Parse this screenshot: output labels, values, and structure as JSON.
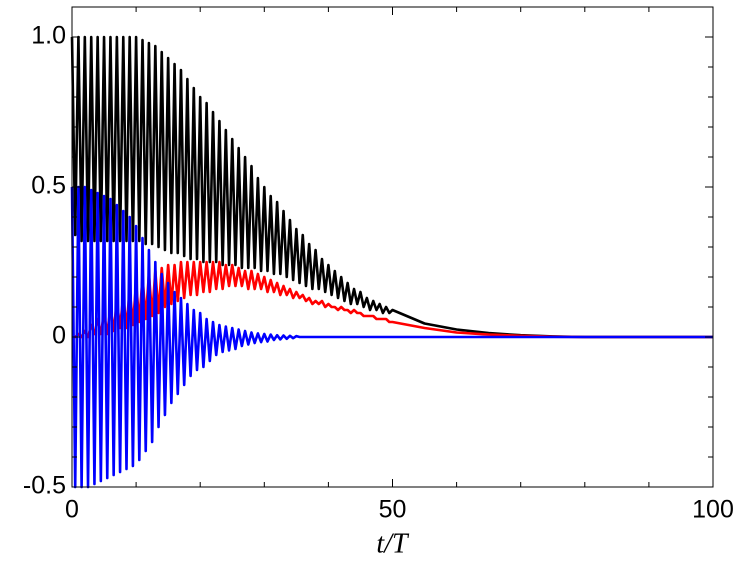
{
  "chart_data": {
    "type": "line",
    "x_label": "t/T",
    "xlim": [
      0,
      100
    ],
    "xticks": [
      0,
      50,
      100
    ],
    "xminorticks": [
      10,
      20,
      30,
      40,
      60,
      70,
      80,
      90
    ],
    "ylim": [
      -0.5,
      1.1
    ],
    "yticks": [
      -0.5,
      0,
      0.5,
      {
        "value": 1,
        "label": "1.0"
      }
    ],
    "yminorticks": [
      -0.4,
      -0.3,
      -0.2,
      -0.1,
      0.1,
      0.2,
      0.3,
      0.4,
      0.6,
      0.7,
      0.8,
      0.9,
      1.1
    ],
    "grid": false,
    "x": [
      0,
      0.5,
      1,
      1.5,
      2,
      2.5,
      3,
      3.5,
      4,
      4.5,
      5,
      5.5,
      6,
      6.5,
      7,
      7.5,
      8,
      8.5,
      9,
      9.5,
      10,
      10.5,
      11,
      11.5,
      12,
      12.5,
      13,
      13.5,
      14,
      14.5,
      15,
      15.5,
      16,
      16.5,
      17,
      17.5,
      18,
      18.5,
      19,
      19.5,
      20,
      20.5,
      21,
      21.5,
      22,
      22.5,
      23,
      23.5,
      24,
      24.5,
      25,
      25.5,
      26,
      26.5,
      27,
      27.5,
      28,
      28.5,
      29,
      29.5,
      30,
      30.5,
      31,
      31.5,
      32,
      32.5,
      33,
      33.5,
      34,
      34.5,
      35,
      35.5,
      36,
      36.5,
      37,
      37.5,
      38,
      38.5,
      39,
      39.5,
      40,
      40.5,
      41,
      41.5,
      42,
      42.5,
      43,
      43.5,
      44,
      44.5,
      45,
      45.5,
      46,
      46.5,
      47,
      47.5,
      48,
      48.5,
      49,
      49.5,
      50,
      55,
      60,
      65,
      70,
      75,
      80,
      85,
      90,
      95,
      100
    ],
    "series": [
      {
        "color": "#000000",
        "values": [
          1.0,
          0.34,
          1.0,
          0.32,
          1.0,
          0.32,
          1.0,
          0.32,
          1.0,
          0.32,
          1.0,
          0.32,
          1.0,
          0.32,
          1.0,
          0.32,
          1.0,
          0.32,
          1.0,
          0.32,
          1.0,
          0.32,
          0.99,
          0.31,
          0.98,
          0.31,
          0.97,
          0.3,
          0.95,
          0.29,
          0.93,
          0.28,
          0.91,
          0.28,
          0.89,
          0.27,
          0.86,
          0.26,
          0.83,
          0.26,
          0.8,
          0.25,
          0.78,
          0.25,
          0.75,
          0.25,
          0.72,
          0.24,
          0.69,
          0.24,
          0.66,
          0.24,
          0.63,
          0.23,
          0.6,
          0.23,
          0.57,
          0.23,
          0.53,
          0.22,
          0.5,
          0.22,
          0.47,
          0.21,
          0.45,
          0.21,
          0.42,
          0.2,
          0.39,
          0.19,
          0.36,
          0.18,
          0.34,
          0.17,
          0.31,
          0.16,
          0.29,
          0.16,
          0.26,
          0.15,
          0.24,
          0.14,
          0.22,
          0.13,
          0.2,
          0.12,
          0.18,
          0.11,
          0.16,
          0.11,
          0.15,
          0.1,
          0.13,
          0.09,
          0.12,
          0.09,
          0.11,
          0.08,
          0.1,
          0.08,
          0.09,
          0.045,
          0.025,
          0.013,
          0.006,
          0.002,
          0,
          0,
          0,
          0,
          0
        ]
      },
      {
        "color": "#ff0000",
        "values": [
          0,
          0,
          0.01,
          0,
          0.02,
          0,
          0.04,
          0.01,
          0.06,
          0.01,
          0.08,
          0.01,
          0.1,
          0.02,
          0.12,
          0.03,
          0.14,
          0.03,
          0.16,
          0.04,
          0.18,
          0.05,
          0.2,
          0.06,
          0.21,
          0.07,
          0.22,
          0.08,
          0.23,
          0.1,
          0.24,
          0.11,
          0.24,
          0.12,
          0.25,
          0.13,
          0.25,
          0.14,
          0.25,
          0.14,
          0.25,
          0.15,
          0.25,
          0.15,
          0.25,
          0.16,
          0.25,
          0.16,
          0.24,
          0.17,
          0.24,
          0.17,
          0.23,
          0.17,
          0.22,
          0.16,
          0.22,
          0.16,
          0.21,
          0.16,
          0.2,
          0.15,
          0.19,
          0.15,
          0.18,
          0.14,
          0.17,
          0.14,
          0.16,
          0.13,
          0.15,
          0.13,
          0.14,
          0.12,
          0.13,
          0.11,
          0.12,
          0.11,
          0.12,
          0.1,
          0.11,
          0.1,
          0.1,
          0.09,
          0.1,
          0.09,
          0.09,
          0.08,
          0.09,
          0.08,
          0.08,
          0.07,
          0.07,
          0.07,
          0.07,
          0.06,
          0.06,
          0.06,
          0.06,
          0.05,
          0.05,
          0.03,
          0.015,
          0.008,
          0.004,
          0.001,
          0,
          0,
          0,
          0,
          0
        ]
      },
      {
        "color": "#0000ff",
        "values": [
          0.5,
          -0.5,
          0.5,
          -0.5,
          0.5,
          -0.5,
          0.49,
          -0.49,
          0.48,
          -0.48,
          0.47,
          -0.47,
          0.46,
          -0.46,
          0.44,
          -0.45,
          0.42,
          -0.44,
          0.4,
          -0.43,
          0.37,
          -0.41,
          0.33,
          -0.38,
          0.29,
          -0.35,
          0.25,
          -0.3,
          0.21,
          -0.26,
          0.18,
          -0.22,
          0.15,
          -0.19,
          0.13,
          -0.16,
          0.11,
          -0.13,
          0.09,
          -0.11,
          0.08,
          -0.1,
          0.06,
          -0.08,
          0.05,
          -0.06,
          0.04,
          -0.05,
          0.035,
          -0.045,
          0.03,
          -0.04,
          0.025,
          -0.03,
          0.02,
          -0.025,
          0.015,
          -0.02,
          0.012,
          -0.017,
          0.01,
          -0.015,
          0.008,
          -0.01,
          0.006,
          -0.008,
          0.005,
          -0.006,
          0.004,
          -0.004,
          0.003,
          0,
          0,
          0,
          0,
          0,
          0,
          0,
          0,
          0,
          0,
          0,
          0,
          0,
          0,
          0,
          0,
          0,
          0,
          0,
          0,
          0,
          0,
          0,
          0,
          0,
          0,
          0,
          0,
          0,
          0,
          0,
          0,
          0,
          0,
          0,
          0,
          0,
          0,
          0,
          0
        ]
      }
    ]
  }
}
